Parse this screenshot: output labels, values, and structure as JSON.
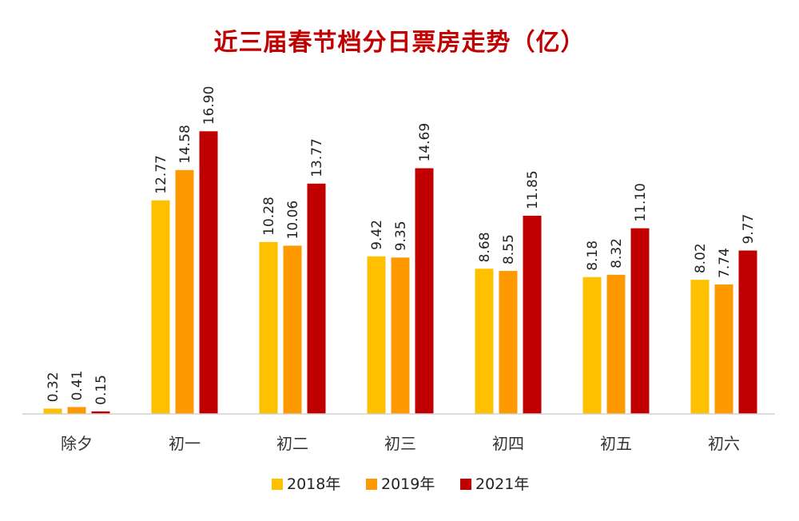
{
  "chart_data": {
    "type": "bar",
    "title": "近三届春节档分日票房走势（亿）",
    "categories": [
      "除夕",
      "初一",
      "初二",
      "初三",
      "初四",
      "初五",
      "初六"
    ],
    "series": [
      {
        "name": "2018年",
        "color": "#FFC000",
        "values": [
          0.32,
          12.77,
          10.28,
          9.42,
          8.68,
          8.18,
          8.02
        ],
        "labels": [
          "0.32",
          "12.77",
          "10.28",
          "9.42",
          "8.68",
          "8.18",
          "8.02"
        ]
      },
      {
        "name": "2019年",
        "color": "#FF9900",
        "values": [
          0.41,
          14.58,
          10.06,
          9.35,
          8.55,
          8.32,
          7.74
        ],
        "labels": [
          "0.41",
          "14.58",
          "10.06",
          "9.35",
          "8.55",
          "8.32",
          "7.74"
        ]
      },
      {
        "name": "2021年",
        "color": "#C00000",
        "values": [
          0.15,
          16.9,
          13.77,
          14.69,
          11.85,
          11.1,
          9.77
        ],
        "labels": [
          "0.15",
          "16.90",
          "13.77",
          "14.69",
          "11.85",
          "11.10",
          "9.77"
        ]
      }
    ],
    "xlabel": "",
    "ylabel": "",
    "ylim": [
      0,
      17.2
    ],
    "grid": false,
    "legend": "bottom"
  }
}
